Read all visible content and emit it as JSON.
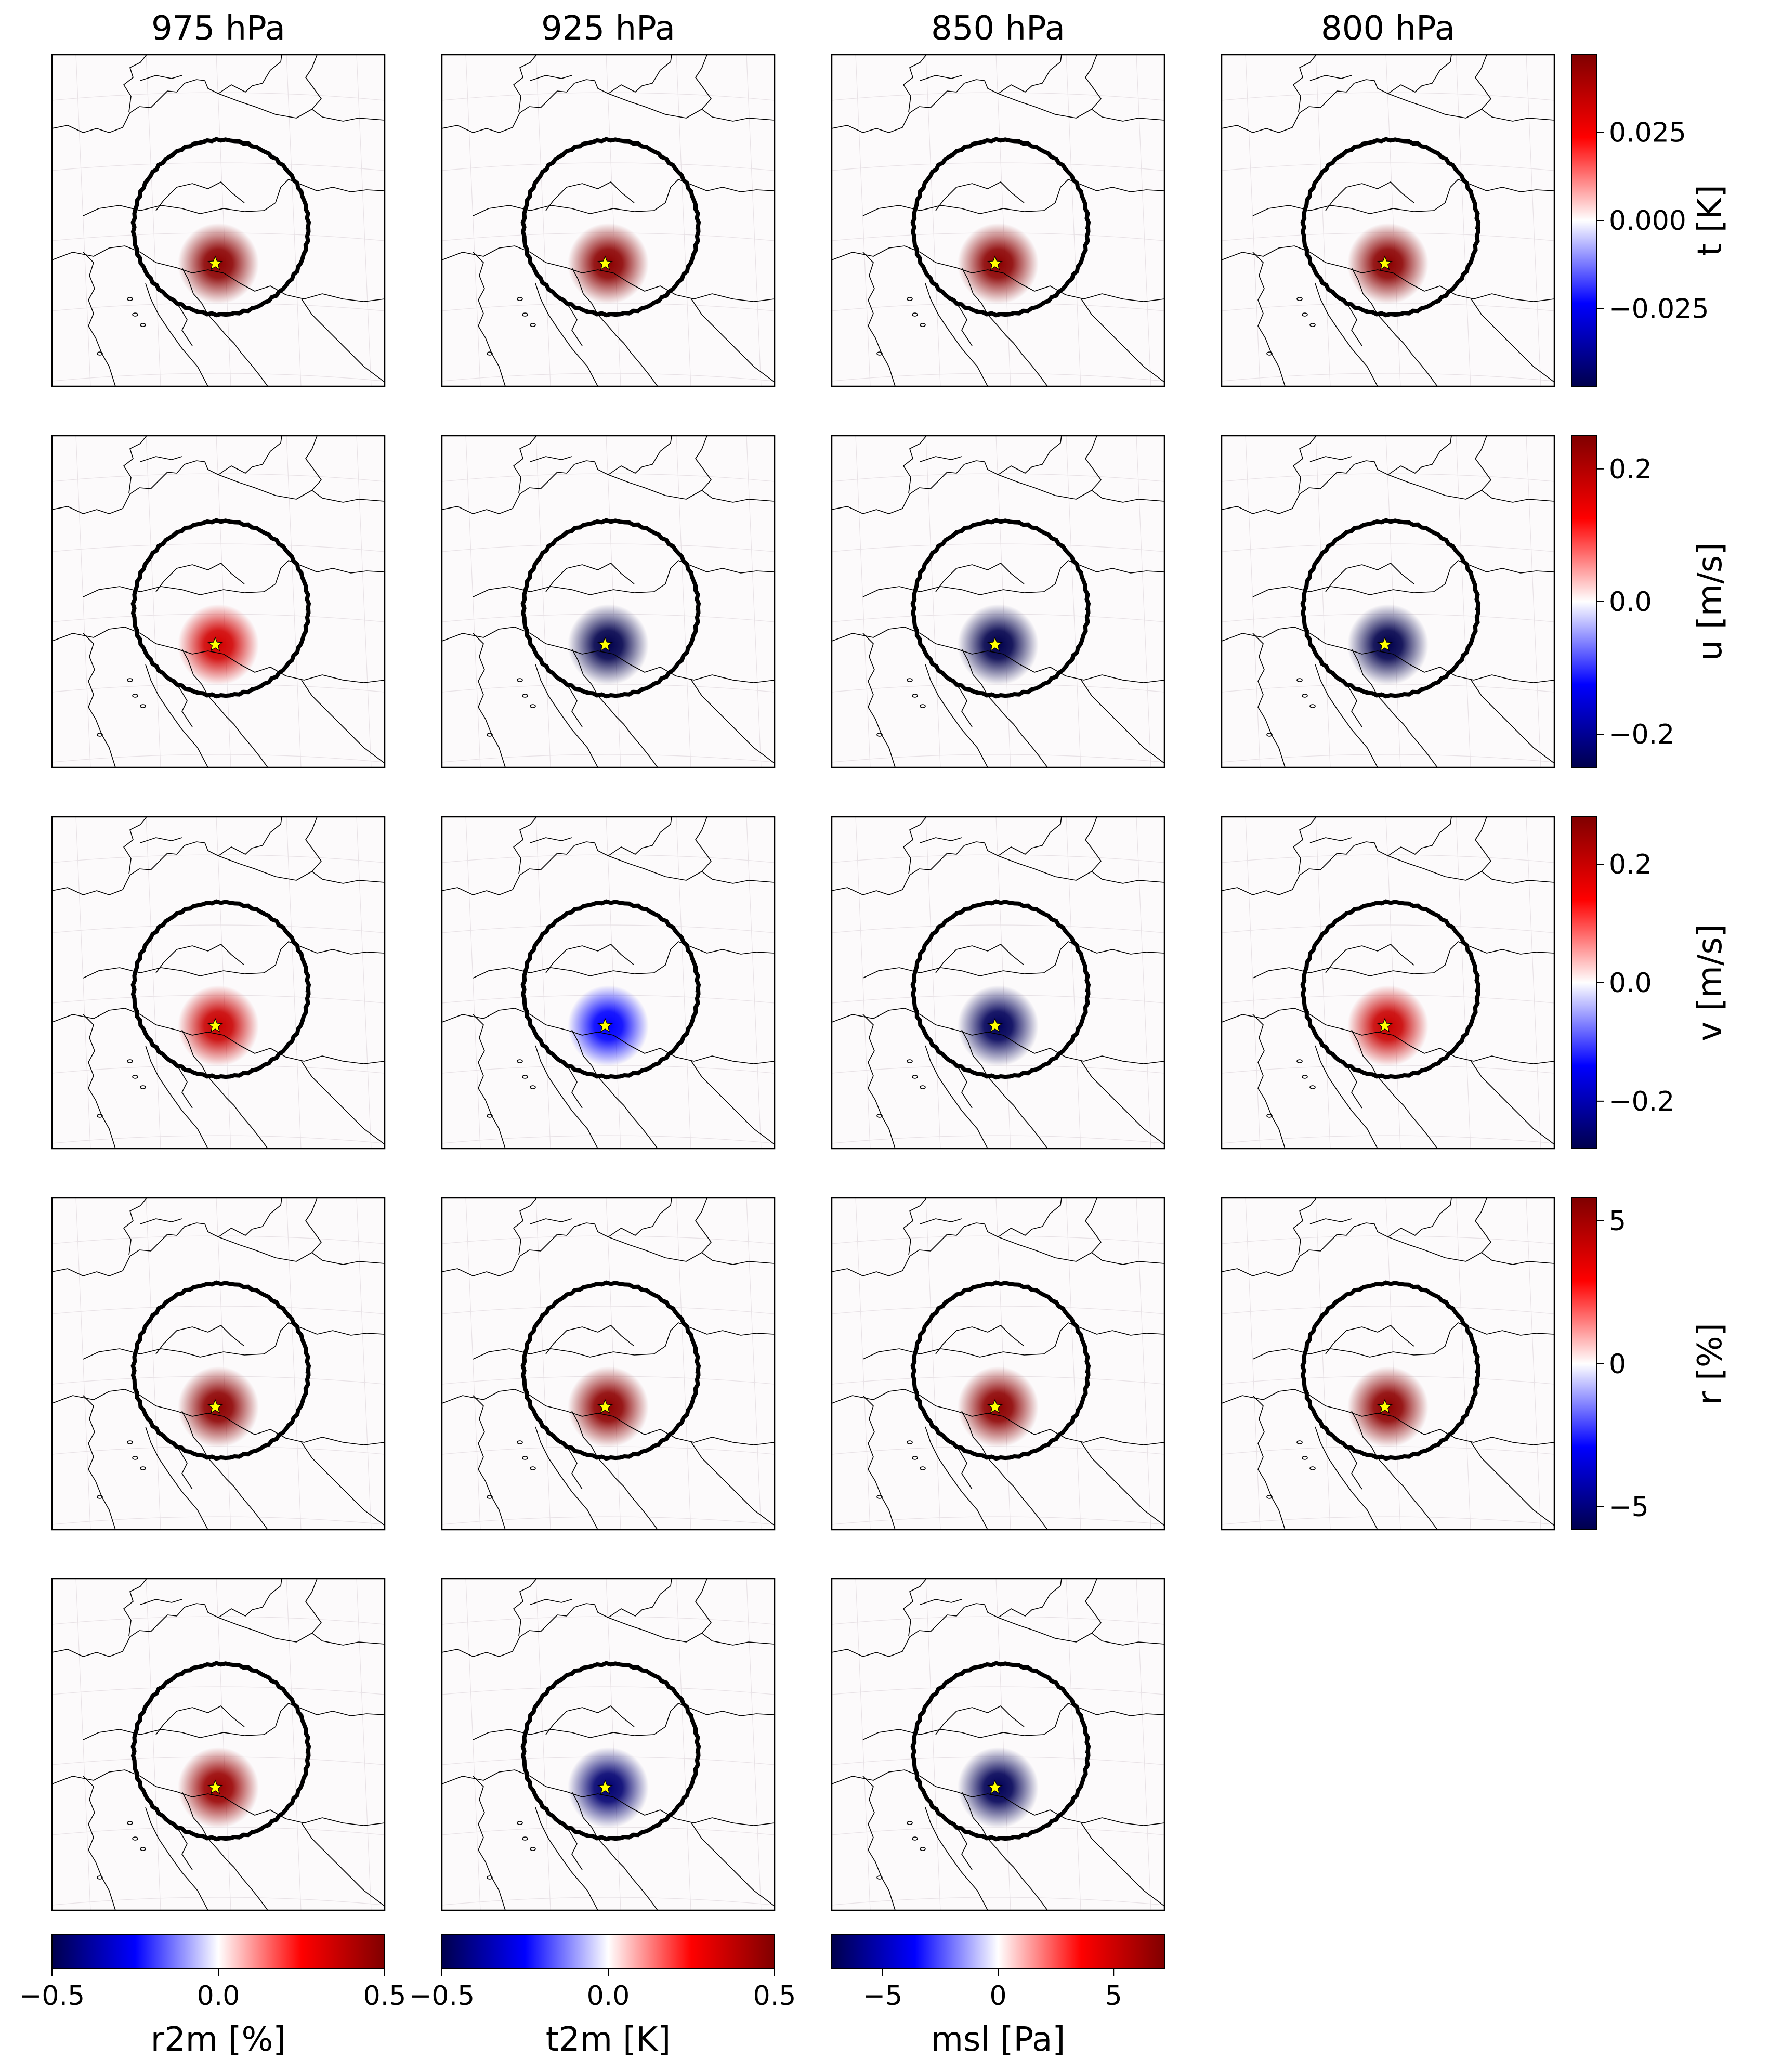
{
  "chart_data": {
    "type": "heatmap",
    "column_titles": [
      "975 hPa",
      "925 hPa",
      "850 hPa",
      "800 hPa"
    ],
    "rows": [
      {
        "variable": "t",
        "colorbar_label": "t [K]",
        "vmin": -0.047,
        "vmax": 0.047,
        "ticks": [
          {
            "value": 0.025,
            "label": "0.025"
          },
          {
            "value": 0.0,
            "label": "0.000"
          },
          {
            "value": -0.025,
            "label": "−0.025"
          }
        ],
        "panels": [
          {
            "level": "975 hPa",
            "peak": 0.045
          },
          {
            "level": "925 hPa",
            "peak": 0.045
          },
          {
            "level": "850 hPa",
            "peak": 0.045
          },
          {
            "level": "800 hPa",
            "peak": 0.045
          }
        ]
      },
      {
        "variable": "u",
        "colorbar_label": "u [m/s]",
        "vmin": -0.25,
        "vmax": 0.25,
        "ticks": [
          {
            "value": 0.2,
            "label": "0.2"
          },
          {
            "value": 0.0,
            "label": "0.0"
          },
          {
            "value": -0.2,
            "label": "−0.2"
          }
        ],
        "panels": [
          {
            "level": "975 hPa",
            "peak": 0.17
          },
          {
            "level": "925 hPa",
            "peak": -0.25
          },
          {
            "level": "850 hPa",
            "peak": -0.25
          },
          {
            "level": "800 hPa",
            "peak": -0.25
          }
        ]
      },
      {
        "variable": "v",
        "colorbar_label": "v [m/s]",
        "vmin": -0.28,
        "vmax": 0.28,
        "ticks": [
          {
            "value": 0.2,
            "label": "0.2"
          },
          {
            "value": 0.0,
            "label": "0.0"
          },
          {
            "value": -0.2,
            "label": "−0.2"
          }
        ],
        "panels": [
          {
            "level": "975 hPa",
            "peak": 0.2
          },
          {
            "level": "925 hPa",
            "peak": -0.14
          },
          {
            "level": "850 hPa",
            "peak": -0.27
          },
          {
            "level": "800 hPa",
            "peak": 0.2
          }
        ]
      },
      {
        "variable": "r",
        "colorbar_label": "r [%]",
        "vmin": -5.8,
        "vmax": 5.8,
        "ticks": [
          {
            "value": 5,
            "label": "5"
          },
          {
            "value": 0,
            "label": "0"
          },
          {
            "value": -5,
            "label": "−5"
          }
        ],
        "panels": [
          {
            "level": "975 hPa",
            "peak": 5.5
          },
          {
            "level": "925 hPa",
            "peak": 5.5
          },
          {
            "level": "850 hPa",
            "peak": 5.5
          },
          {
            "level": "800 hPa",
            "peak": 5.5
          }
        ]
      }
    ],
    "surface": [
      {
        "variable": "r2m",
        "colorbar_label": "r2m [%]",
        "vmin": -0.5,
        "vmax": 0.5,
        "ticks": [
          {
            "value": -0.5,
            "label": "−0.5"
          },
          {
            "value": 0.0,
            "label": "0.0"
          },
          {
            "value": 0.5,
            "label": "0.5"
          }
        ],
        "peak": 0.45
      },
      {
        "variable": "t2m",
        "colorbar_label": "t2m [K]",
        "vmin": -0.5,
        "vmax": 0.5,
        "ticks": [
          {
            "value": -0.5,
            "label": "−0.5"
          },
          {
            "value": 0.0,
            "label": "0.0"
          },
          {
            "value": 0.5,
            "label": "0.5"
          }
        ],
        "peak": -0.45
      },
      {
        "variable": "msl",
        "colorbar_label": "msl [Pa]",
        "vmin": -7.2,
        "vmax": 7.2,
        "ticks": [
          {
            "value": -5,
            "label": "−5"
          },
          {
            "value": 0,
            "label": "0"
          },
          {
            "value": 5,
            "label": "5"
          }
        ],
        "peak": -7.0
      }
    ],
    "colormap": "seismic",
    "colormap_stops": [
      "#00004c",
      "#0000ff",
      "#ffffff",
      "#ff0000",
      "#800000"
    ],
    "background_tint": "#fcfafb",
    "marker": {
      "shape": "star",
      "color": "#ffff00"
    },
    "circle_color": "#000000",
    "grid": true
  }
}
